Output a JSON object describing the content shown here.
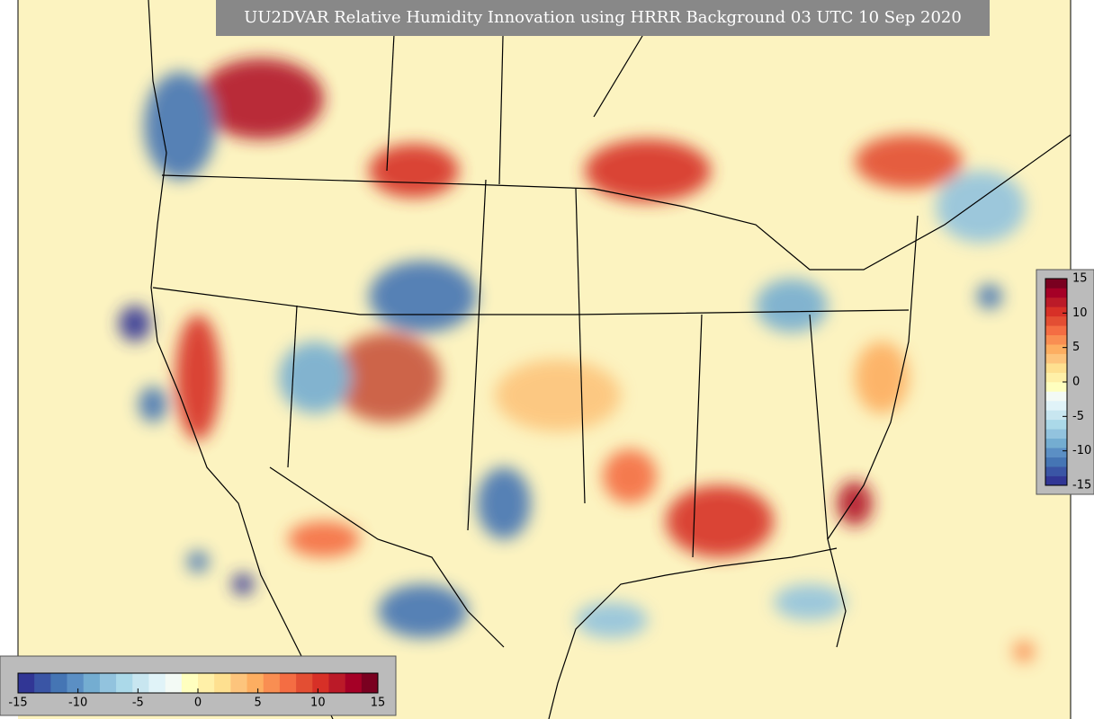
{
  "title": "UU2DVAR Relative Humidity Innovation using HRRR Background 03 UTC 10 Sep 2020",
  "colorbar": {
    "range": [
      -15,
      15
    ],
    "colors": [
      "#313695",
      "#3a55a5",
      "#4575b4",
      "#5b8fc4",
      "#74add1",
      "#92c3de",
      "#abd9e9",
      "#c8e6f0",
      "#e0f3f8",
      "#f3faf5",
      "#ffffbf",
      "#fff0a8",
      "#fee090",
      "#fdc47c",
      "#fdae61",
      "#f98e52",
      "#f46d43",
      "#e34e33",
      "#d73027",
      "#bb1a28",
      "#a50026",
      "#7a0020"
    ],
    "ticks": [
      -15,
      -10,
      -5,
      0,
      5,
      10,
      15
    ]
  }
}
